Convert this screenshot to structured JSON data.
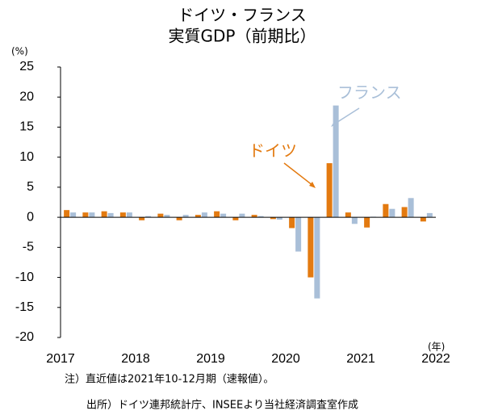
{
  "chart_data": {
    "type": "bar",
    "title": [
      "ドイツ・フランス",
      "実質GDP（前期比）"
    ],
    "y_unit": "(%)",
    "x_unit": "(年)",
    "categories": [
      null,
      null,
      null,
      null,
      null,
      null,
      null,
      null,
      null,
      null,
      null,
      null,
      null,
      null,
      null,
      null,
      null,
      null,
      null,
      null
    ],
    "xtick_labels": [
      "2017",
      "2018",
      "2019",
      "2020",
      "2021",
      "2022"
    ],
    "series": [
      {
        "name": "ドイツ",
        "color": "#e37a10",
        "values": [
          1.2,
          0.8,
          1.0,
          0.8,
          -0.5,
          0.6,
          -0.5,
          0.4,
          1.0,
          -0.5,
          0.4,
          -0.3,
          -1.8,
          -10.0,
          9.0,
          0.8,
          -1.7,
          2.2,
          1.7,
          -0.7
        ]
      },
      {
        "name": "フランス",
        "color": "#a9bfd8",
        "values": [
          0.8,
          0.8,
          0.7,
          0.8,
          0.2,
          0.4,
          0.4,
          0.8,
          0.6,
          0.6,
          0.2,
          -0.4,
          -5.7,
          -13.5,
          18.6,
          -1.1,
          0.1,
          1.4,
          3.2,
          0.7
        ]
      }
    ],
    "ylim": [
      -20,
      25
    ],
    "yticks": [
      -20,
      -15,
      -10,
      -5,
      0,
      5,
      10,
      15,
      20,
      25
    ],
    "notes": [
      "注）直近値は2021年10-12月期（速報値）。",
      "出所）ドイツ連邦統計庁、INSEEより当社経済調査室作成"
    ]
  }
}
